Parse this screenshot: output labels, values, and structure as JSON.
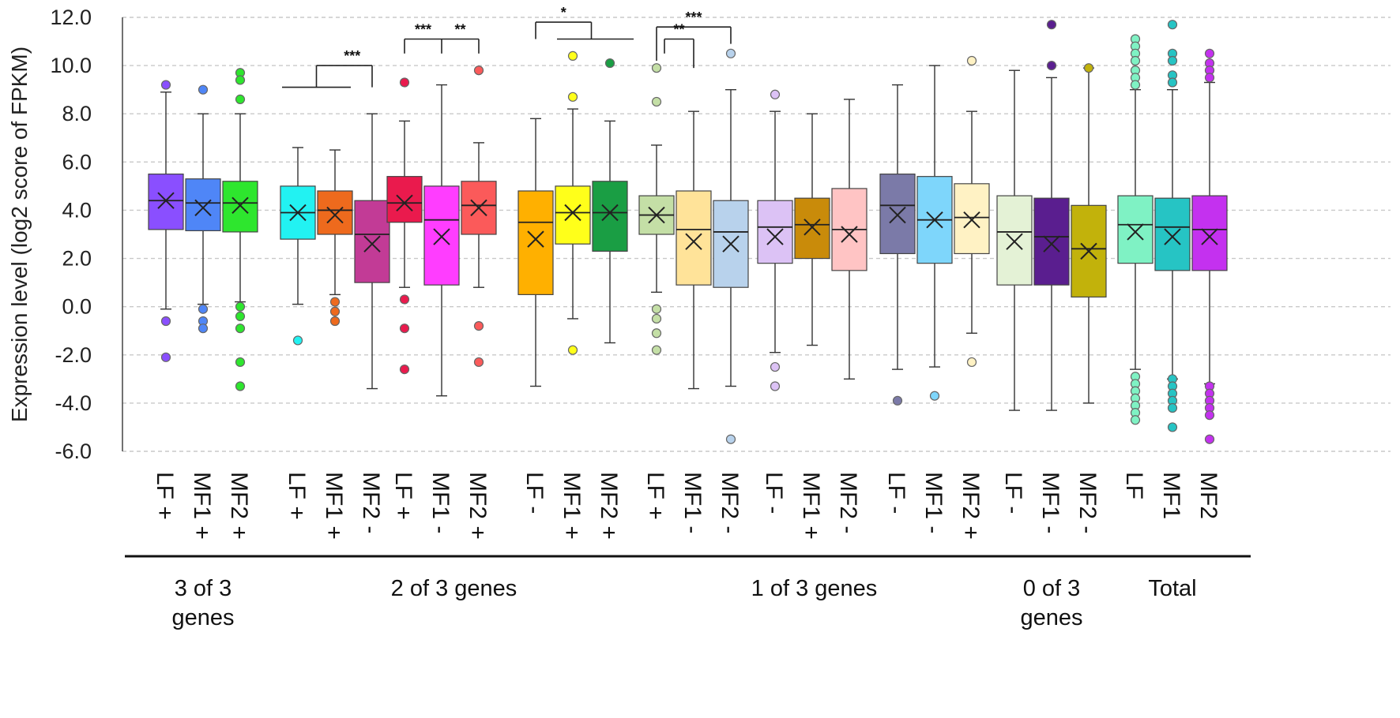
{
  "chart_data": {
    "type": "boxplot",
    "ylabel": "Expression level (log2 score of FPKM)",
    "xlabel": "",
    "ylim": [
      -6.0,
      12.0
    ],
    "y_ticks": [
      "12.0",
      "10.0",
      "8.0",
      "6.0",
      "4.0",
      "2.0",
      "0.0",
      "-2.0",
      "-4.0",
      "-6.0"
    ],
    "grid": "horizontal dashed",
    "groups": [
      {
        "label_lines": [
          "3 of 3",
          "genes"
        ],
        "boxes": [
          {
            "label": "LF +",
            "color": "#8a4fff",
            "q1": 3.2,
            "median": 4.4,
            "q3": 5.5,
            "mean": 4.4,
            "whisker_low": -0.1,
            "whisker_high": 8.9,
            "outliers": [
              9.2,
              -0.6,
              -2.1
            ]
          },
          {
            "label": "MF1 +",
            "color": "#4f86f7",
            "q1": 3.15,
            "median": 4.3,
            "q3": 5.3,
            "mean": 4.1,
            "whisker_low": 0.1,
            "whisker_high": 8.0,
            "outliers": [
              9.0,
              -0.1,
              -0.6,
              -0.9
            ]
          },
          {
            "label": "MF2 +",
            "color": "#2ee62e",
            "q1": 3.1,
            "median": 4.3,
            "q3": 5.2,
            "mean": 4.2,
            "whisker_low": 0.2,
            "whisker_high": 8.0,
            "outliers": [
              9.7,
              9.4,
              8.6,
              -0.0,
              -0.4,
              -0.9,
              -2.3,
              -3.3
            ]
          }
        ]
      },
      {
        "label_lines": [
          "2 of 3 genes"
        ],
        "boxes": [
          {
            "label": "LF +",
            "color": "#22f2f2",
            "q1": 2.8,
            "median": 3.9,
            "q3": 5.0,
            "mean": 3.9,
            "whisker_low": 0.1,
            "whisker_high": 6.6,
            "outliers": [
              -1.4
            ]
          },
          {
            "label": "MF1 +",
            "color": "#ee6a1d",
            "q1": 3.0,
            "median": 4.0,
            "q3": 4.8,
            "mean": 3.8,
            "whisker_low": 0.5,
            "whisker_high": 6.5,
            "outliers": [
              0.2,
              -0.2,
              -0.6
            ]
          },
          {
            "label": "MF2 -",
            "color": "#c23b96",
            "q1": 1.0,
            "median": 3.0,
            "q3": 4.4,
            "mean": 2.6,
            "whisker_low": -3.4,
            "whisker_high": 8.0,
            "outliers": []
          },
          {
            "label": "LF +",
            "color": "#ea1a4d",
            "q1": 3.5,
            "median": 4.3,
            "q3": 5.4,
            "mean": 4.3,
            "whisker_low": 0.8,
            "whisker_high": 7.7,
            "outliers": [
              9.3,
              0.3,
              -0.9,
              -2.6
            ]
          },
          {
            "label": "MF1 -",
            "color": "#ff3dff",
            "q1": 0.9,
            "median": 3.6,
            "q3": 5.0,
            "mean": 2.9,
            "whisker_low": -3.7,
            "whisker_high": 9.2,
            "outliers": []
          },
          {
            "label": "MF2 +",
            "color": "#fb5a5a",
            "q1": 3.0,
            "median": 4.2,
            "q3": 5.2,
            "mean": 4.1,
            "whisker_low": 0.8,
            "whisker_high": 6.8,
            "outliers": [
              9.8,
              -0.8,
              -2.3
            ]
          },
          {
            "label": "LF -",
            "color": "#ffb000",
            "q1": 0.5,
            "median": 3.5,
            "q3": 4.8,
            "mean": 2.8,
            "whisker_low": -3.3,
            "whisker_high": 7.8,
            "outliers": []
          },
          {
            "label": "MF1 +",
            "color": "#ffff1a",
            "q1": 2.6,
            "median": 3.9,
            "q3": 5.0,
            "mean": 3.9,
            "whisker_low": -0.5,
            "whisker_high": 8.2,
            "outliers": [
              10.4,
              8.7,
              -1.8
            ]
          },
          {
            "label": "MF2 +",
            "color": "#1a9e44",
            "q1": 2.3,
            "median": 3.9,
            "q3": 5.2,
            "mean": 3.9,
            "whisker_low": -1.5,
            "whisker_high": 7.7,
            "outliers": [
              10.1
            ]
          }
        ]
      },
      {
        "label_lines": [
          "1 of 3 genes"
        ],
        "boxes": [
          {
            "label": "LF +",
            "color": "#c4dfa6",
            "q1": 3.0,
            "median": 3.8,
            "q3": 4.6,
            "mean": 3.8,
            "whisker_low": 0.6,
            "whisker_high": 6.7,
            "outliers": [
              9.9,
              8.5,
              -0.1,
              -0.5,
              -1.1,
              -1.8
            ]
          },
          {
            "label": "MF1 -",
            "color": "#ffe399",
            "q1": 0.9,
            "median": 3.2,
            "q3": 4.8,
            "mean": 2.7,
            "whisker_low": -3.4,
            "whisker_high": 8.1,
            "outliers": []
          },
          {
            "label": "MF2 -",
            "color": "#b8d2ec",
            "q1": 0.8,
            "median": 3.1,
            "q3": 4.4,
            "mean": 2.6,
            "whisker_low": -3.3,
            "whisker_high": 9.0,
            "outliers": [
              10.5,
              -5.5
            ]
          },
          {
            "label": "LF -",
            "color": "#dcc2f5",
            "q1": 1.8,
            "median": 3.3,
            "q3": 4.4,
            "mean": 2.9,
            "whisker_low": -1.9,
            "whisker_high": 8.1,
            "outliers": [
              8.8,
              -2.5,
              -3.3
            ]
          },
          {
            "label": "MF1 +",
            "color": "#c98b0a",
            "q1": 2.0,
            "median": 3.4,
            "q3": 4.5,
            "mean": 3.3,
            "whisker_low": -1.6,
            "whisker_high": 8.0,
            "outliers": []
          },
          {
            "label": "MF2 -",
            "color": "#ffc4c4",
            "q1": 1.5,
            "median": 3.2,
            "q3": 4.9,
            "mean": 3.0,
            "whisker_low": -3.0,
            "whisker_high": 8.6,
            "outliers": []
          },
          {
            "label": "LF -",
            "color": "#7b7aa8",
            "q1": 2.2,
            "median": 4.2,
            "q3": 5.5,
            "mean": 3.8,
            "whisker_low": -2.6,
            "whisker_high": 9.2,
            "outliers": [
              -3.9
            ]
          },
          {
            "label": "MF1 -",
            "color": "#7ed6fb",
            "q1": 1.8,
            "median": 3.6,
            "q3": 5.4,
            "mean": 3.6,
            "whisker_low": -2.5,
            "whisker_high": 10.0,
            "outliers": [
              -3.7
            ]
          },
          {
            "label": "MF2 +",
            "color": "#fff2c4",
            "q1": 2.2,
            "median": 3.7,
            "q3": 5.1,
            "mean": 3.6,
            "whisker_low": -1.1,
            "whisker_high": 8.1,
            "outliers": [
              10.2,
              -2.3
            ]
          }
        ]
      },
      {
        "label_lines": [
          "0 of 3",
          "genes"
        ],
        "boxes": [
          {
            "label": "LF -",
            "color": "#e4f2d6",
            "q1": 0.9,
            "median": 3.1,
            "q3": 4.6,
            "mean": 2.7,
            "whisker_low": -4.3,
            "whisker_high": 9.8,
            "outliers": []
          },
          {
            "label": "MF1 -",
            "color": "#5a1e8f",
            "q1": 0.9,
            "median": 2.9,
            "q3": 4.5,
            "mean": 2.6,
            "whisker_low": -4.3,
            "whisker_high": 9.5,
            "outliers": [
              11.7,
              10.0
            ]
          },
          {
            "label": "MF2 -",
            "color": "#c2b20b",
            "q1": 0.4,
            "median": 2.4,
            "q3": 4.2,
            "mean": 2.3,
            "whisker_low": -4.0,
            "whisker_high": 9.9,
            "outliers": [
              9.9
            ]
          }
        ]
      },
      {
        "label_lines": [
          "Total"
        ],
        "boxes": [
          {
            "label": "LF",
            "color": "#7ff2c4",
            "q1": 1.8,
            "median": 3.4,
            "q3": 4.6,
            "mean": 3.1,
            "whisker_low": -2.6,
            "whisker_high": 9.0,
            "outliers": [
              11.1,
              10.8,
              10.5,
              10.2,
              9.8,
              9.5,
              9.2,
              -2.9,
              -3.2,
              -3.5,
              -3.8,
              -4.1,
              -4.4,
              -4.7
            ]
          },
          {
            "label": "MF1",
            "color": "#26c4c4",
            "q1": 1.5,
            "median": 3.3,
            "q3": 4.5,
            "mean": 2.9,
            "whisker_low": -3.0,
            "whisker_high": 9.0,
            "outliers": [
              11.7,
              10.5,
              10.2,
              9.6,
              9.3,
              -3.0,
              -3.3,
              -3.6,
              -3.9,
              -4.2,
              -5.0
            ]
          },
          {
            "label": "MF2",
            "color": "#c431ef",
            "q1": 1.5,
            "median": 3.2,
            "q3": 4.6,
            "mean": 2.9,
            "whisker_low": -3.2,
            "whisker_high": 9.3,
            "outliers": [
              10.5,
              10.1,
              9.8,
              9.5,
              -3.3,
              -3.6,
              -3.9,
              -4.2,
              -4.5,
              -5.5
            ]
          }
        ]
      }
    ],
    "significance": [
      {
        "label": "***",
        "from_group": 1,
        "from_box": 0,
        "to_group": 1,
        "to_box": 2,
        "style": "bracket_to_pair"
      },
      {
        "label": "***",
        "from_group": 1,
        "from_box": 3,
        "to_group": 1,
        "to_box": 4,
        "style": "bracket"
      },
      {
        "label": "**",
        "from_group": 1,
        "from_box": 4,
        "to_group": 1,
        "to_box": 5,
        "style": "bracket"
      },
      {
        "label": "*",
        "from_group": 1,
        "from_box": 6,
        "to_group": 1,
        "to_box": 8,
        "style": "bracket_to_pair_right"
      },
      {
        "label": "***",
        "from_group": 2,
        "from_box": 0,
        "to_group": 2,
        "to_box": 2,
        "style": "bracket"
      },
      {
        "label": "**",
        "from_group": 2,
        "from_box": 0,
        "to_group": 2,
        "to_box": 1,
        "style": "bracket"
      }
    ]
  }
}
